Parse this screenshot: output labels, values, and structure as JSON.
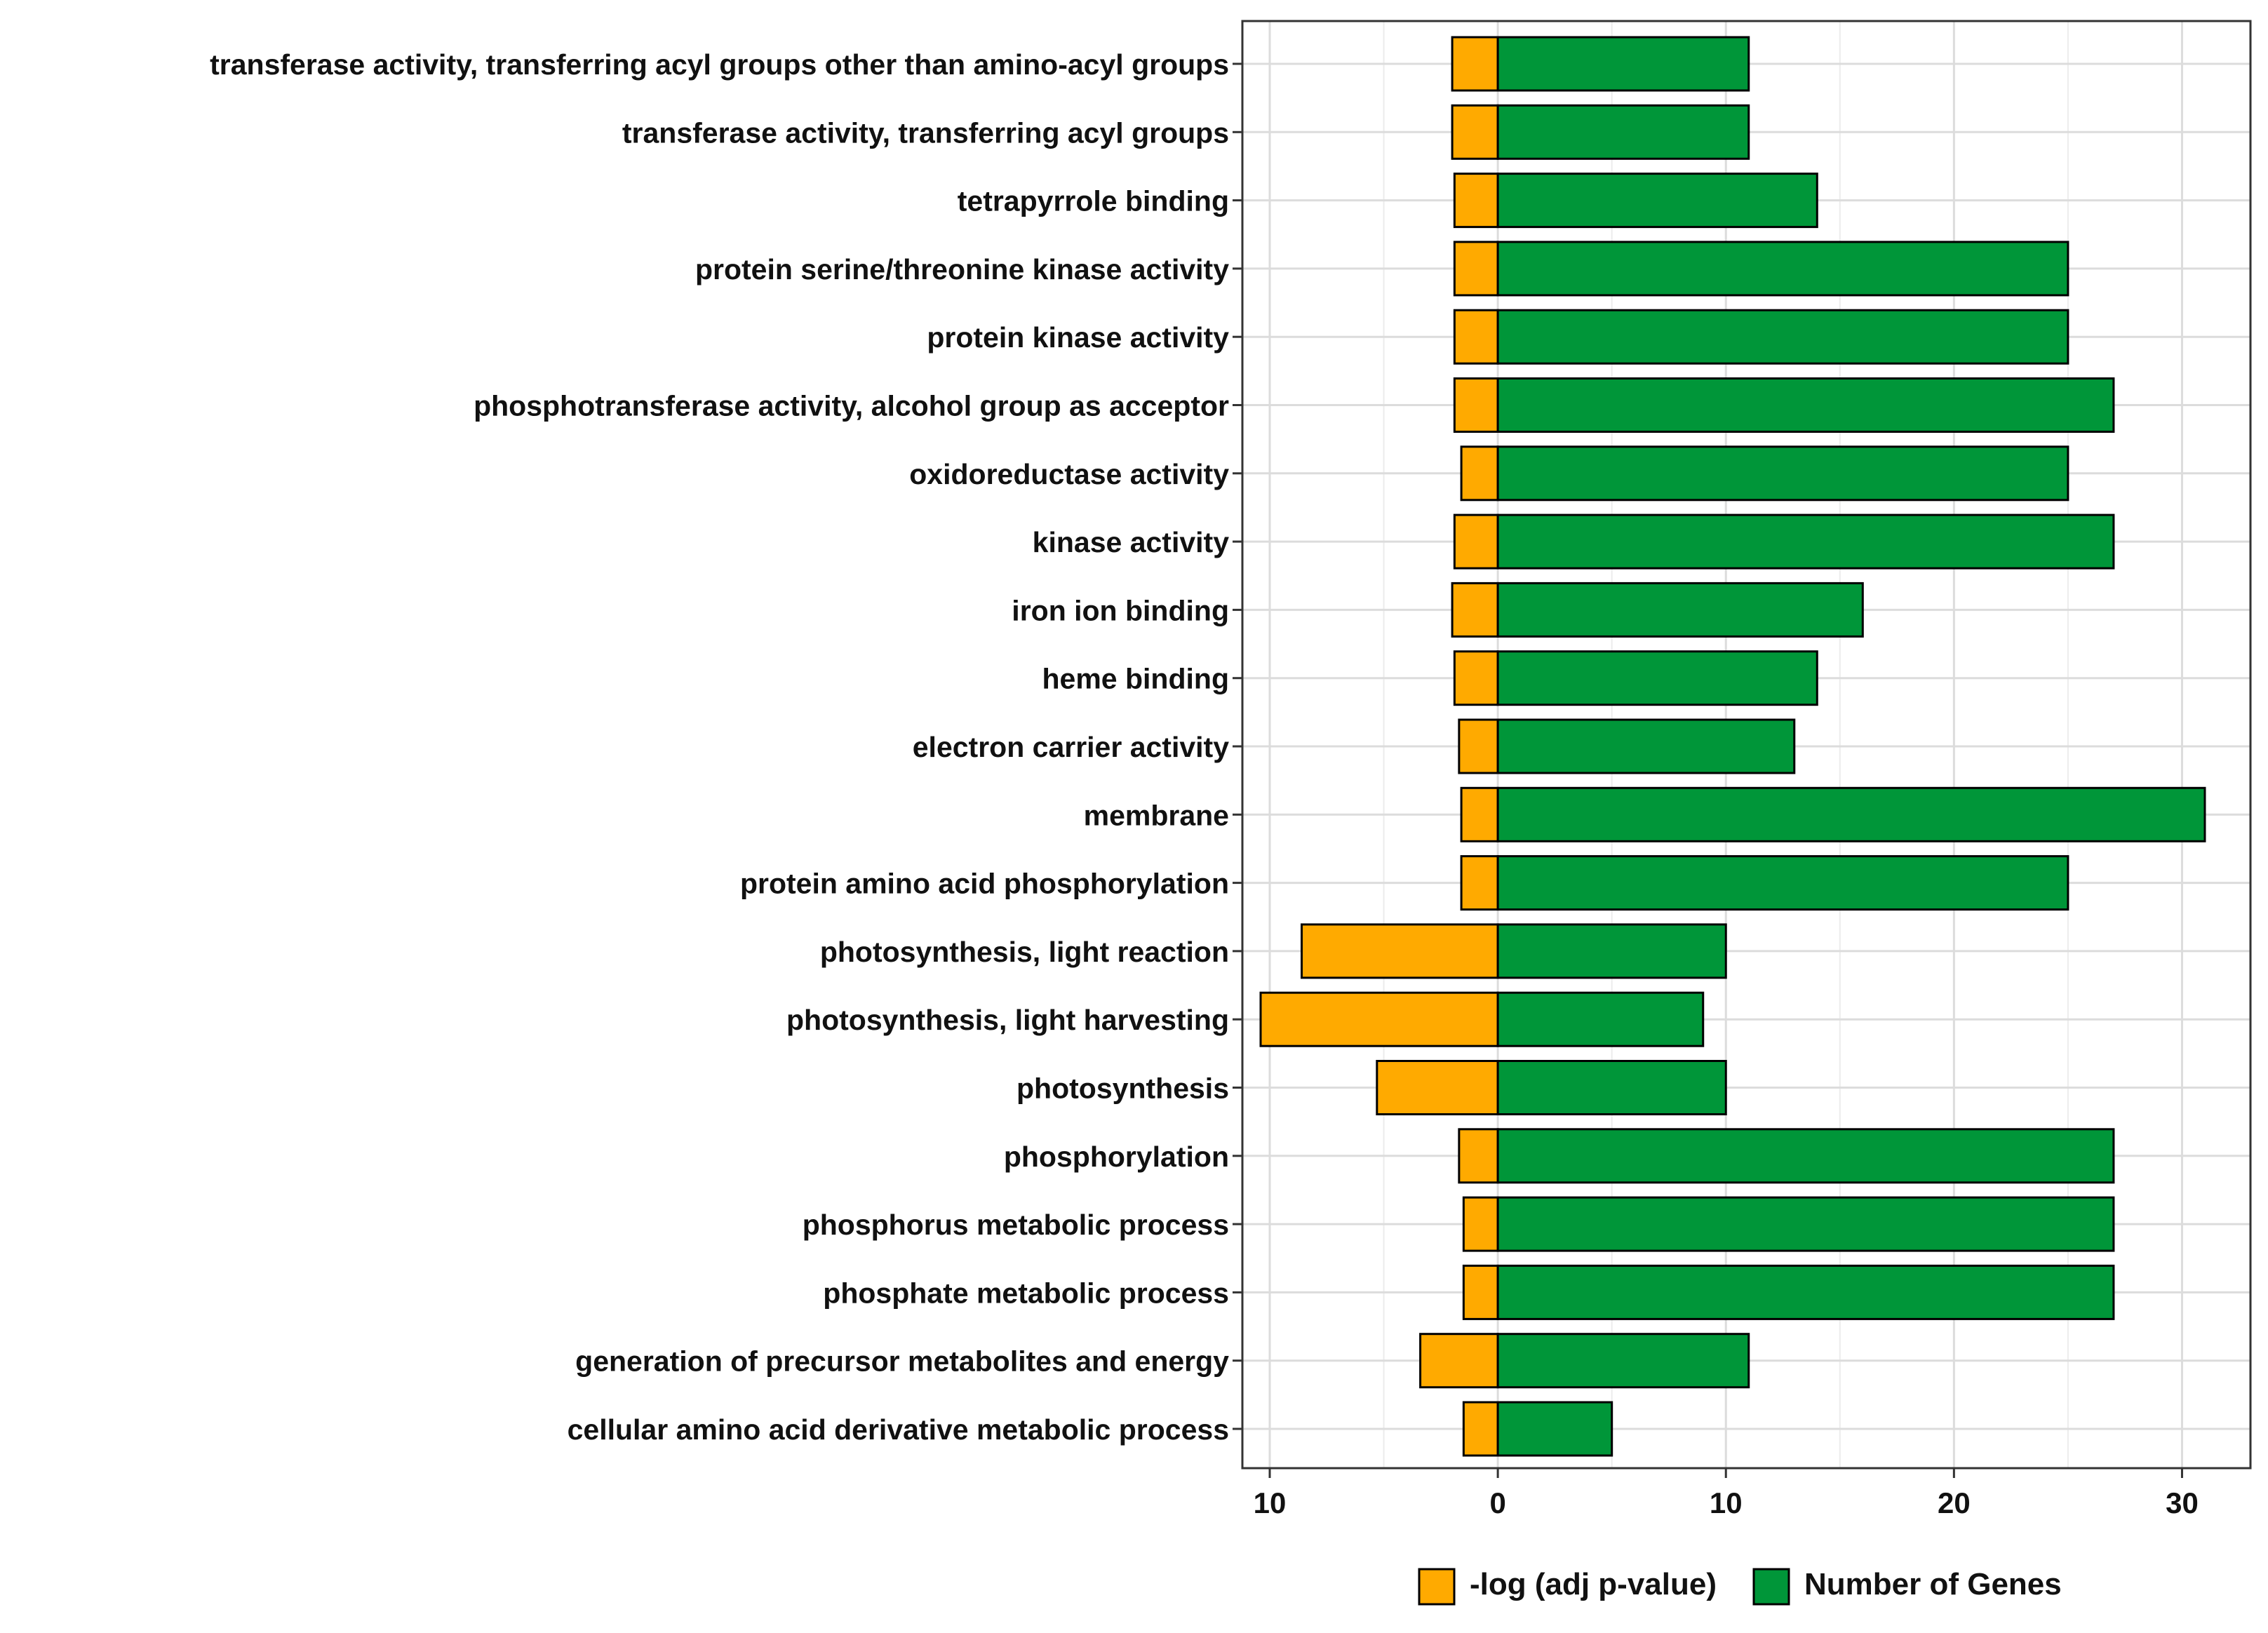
{
  "chart_data": {
    "type": "bar",
    "orientation": "horizontal",
    "title": "",
    "xlabel": "",
    "ylabel": "",
    "xlim": [
      -11.2,
      33
    ],
    "grid": true,
    "legend_position": "bottom",
    "categories": [
      "transferase activity, transferring acyl groups other than amino-acyl groups",
      "transferase activity, transferring acyl groups",
      "tetrapyrrole binding",
      "protein serine/threonine kinase activity",
      "protein kinase activity",
      "phosphotransferase activity, alcohol group as acceptor",
      "oxidoreductase activity",
      "kinase activity",
      "iron ion binding",
      "heme binding",
      "electron carrier activity",
      "membrane",
      "protein amino acid phosphorylation",
      "photosynthesis, light reaction",
      "photosynthesis, light harvesting",
      "photosynthesis",
      "phosphorylation",
      "phosphorus metabolic process",
      "phosphate metabolic process",
      "generation of precursor metabolites and energy",
      "cellular amino acid derivative metabolic process"
    ],
    "series": [
      {
        "name": "-log (adj p-value)",
        "color": "#FFAA00",
        "direction": "left",
        "values": [
          2.0,
          2.0,
          1.9,
          1.9,
          1.9,
          1.9,
          1.6,
          1.9,
          2.0,
          1.9,
          1.7,
          1.6,
          1.6,
          8.6,
          10.4,
          5.3,
          1.7,
          1.5,
          1.5,
          3.4,
          1.5
        ]
      },
      {
        "name": "Number of Genes",
        "color": "#009639",
        "direction": "right",
        "values": [
          11,
          11,
          14,
          25,
          25,
          27,
          25,
          27,
          16,
          14,
          13,
          31,
          25,
          10,
          9,
          10,
          27,
          27,
          27,
          11,
          5
        ]
      }
    ],
    "x_ticks": [
      {
        "value": -10,
        "label": "10"
      },
      {
        "value": 0,
        "label": "0"
      },
      {
        "value": 10,
        "label": "10"
      },
      {
        "value": 20,
        "label": "20"
      },
      {
        "value": 30,
        "label": "30"
      }
    ]
  }
}
